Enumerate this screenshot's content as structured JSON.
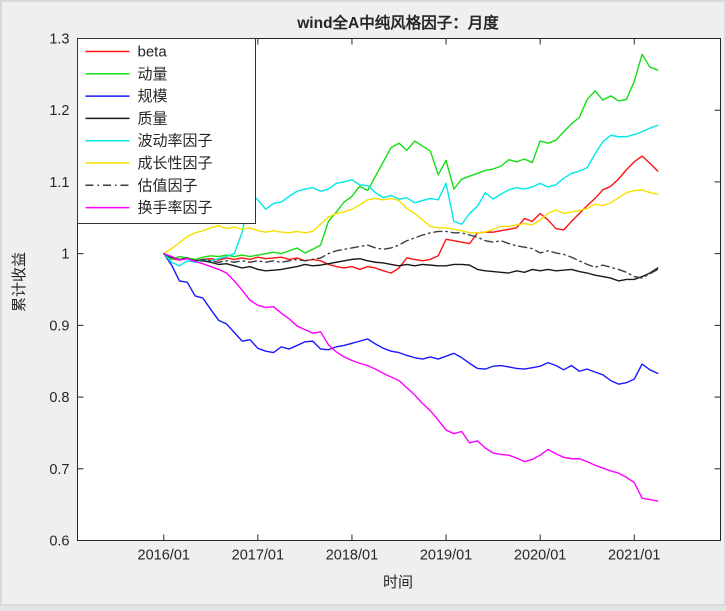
{
  "figure": {
    "background": "#efefef",
    "plot_background": "#ffffff",
    "axis_color": "#262626",
    "frame_color": "#d9d9d9"
  },
  "chart_data": {
    "type": "line",
    "title": "wind全A中纯风格因子：月度",
    "xlabel": "时间",
    "ylabel": "累计收益",
    "grid": false,
    "legend_position": "top-left-inside",
    "x_description": "monthly points, month index 0 = 2016/01, last point = 2021/04",
    "xlim_months": [
      -11,
      71
    ],
    "ylim": [
      0.6,
      1.3
    ],
    "xticks_months": [
      0,
      12,
      24,
      36,
      48,
      60
    ],
    "xtick_labels": [
      "2016/01",
      "2017/01",
      "2018/01",
      "2019/01",
      "2020/01",
      "2021/01"
    ],
    "yticks": [
      0.6,
      0.7,
      0.8,
      0.9,
      1.0,
      1.1,
      1.2,
      1.3
    ],
    "ytick_labels": [
      "0.6",
      "0.7",
      "0.8",
      "0.9",
      "1",
      "1.1",
      "1.2",
      "1.3"
    ],
    "series": [
      {
        "name": "beta",
        "color": "#ff1111",
        "style": "solid",
        "values": [
          1.0,
          0.993,
          0.991,
          0.994,
          0.99,
          0.992,
          0.993,
          0.991,
          0.994,
          0.992,
          0.994,
          0.992,
          0.995,
          0.993,
          0.994,
          0.995,
          0.992,
          0.994,
          0.99,
          0.992,
          0.99,
          0.985,
          0.982,
          0.98,
          0.982,
          0.978,
          0.982,
          0.98,
          0.976,
          0.973,
          0.98,
          0.994,
          0.992,
          0.99,
          0.992,
          0.997,
          1.02,
          1.018,
          1.016,
          1.014,
          1.029,
          1.03,
          1.03,
          1.032,
          1.034,
          1.036,
          1.049,
          1.045,
          1.056,
          1.047,
          1.035,
          1.033,
          1.045,
          1.056,
          1.067,
          1.077,
          1.089,
          1.094,
          1.104,
          1.117,
          1.128,
          1.136,
          1.126,
          1.115
        ]
      },
      {
        "name": "动量",
        "color": "#15dd15",
        "style": "solid",
        "values": [
          1.0,
          0.992,
          0.996,
          0.994,
          0.992,
          0.995,
          0.997,
          0.996,
          0.998,
          0.996,
          0.998,
          0.996,
          0.998,
          1.0,
          1.002,
          1.0,
          1.004,
          1.008,
          1.001,
          1.006,
          1.012,
          1.045,
          1.058,
          1.072,
          1.08,
          1.094,
          1.088,
          1.108,
          1.128,
          1.148,
          1.154,
          1.144,
          1.157,
          1.15,
          1.143,
          1.11,
          1.13,
          1.09,
          1.104,
          1.108,
          1.112,
          1.116,
          1.118,
          1.122,
          1.131,
          1.128,
          1.132,
          1.127,
          1.157,
          1.154,
          1.158,
          1.17,
          1.181,
          1.19,
          1.215,
          1.227,
          1.214,
          1.22,
          1.213,
          1.215,
          1.24,
          1.278,
          1.26,
          1.256
        ]
      },
      {
        "name": "规模",
        "color": "#1a1aff",
        "style": "solid",
        "values": [
          1.0,
          0.984,
          0.962,
          0.96,
          0.941,
          0.938,
          0.922,
          0.907,
          0.902,
          0.89,
          0.878,
          0.88,
          0.868,
          0.864,
          0.862,
          0.87,
          0.867,
          0.872,
          0.877,
          0.878,
          0.867,
          0.866,
          0.87,
          0.872,
          0.875,
          0.878,
          0.881,
          0.874,
          0.868,
          0.864,
          0.862,
          0.858,
          0.855,
          0.853,
          0.856,
          0.853,
          0.857,
          0.861,
          0.855,
          0.847,
          0.84,
          0.839,
          0.843,
          0.844,
          0.842,
          0.84,
          0.839,
          0.841,
          0.843,
          0.848,
          0.844,
          0.838,
          0.844,
          0.836,
          0.839,
          0.835,
          0.831,
          0.823,
          0.818,
          0.82,
          0.825,
          0.846,
          0.838,
          0.833
        ]
      },
      {
        "name": "质量",
        "color": "#1a1a1a",
        "style": "solid",
        "values": [
          1.0,
          0.995,
          0.992,
          0.993,
          0.99,
          0.99,
          0.988,
          0.985,
          0.986,
          0.983,
          0.98,
          0.982,
          0.978,
          0.976,
          0.977,
          0.978,
          0.98,
          0.982,
          0.985,
          0.983,
          0.984,
          0.986,
          0.988,
          0.99,
          0.992,
          0.993,
          0.99,
          0.988,
          0.987,
          0.985,
          0.983,
          0.985,
          0.983,
          0.985,
          0.984,
          0.983,
          0.983,
          0.985,
          0.985,
          0.984,
          0.978,
          0.976,
          0.975,
          0.974,
          0.973,
          0.976,
          0.974,
          0.978,
          0.976,
          0.978,
          0.976,
          0.977,
          0.978,
          0.975,
          0.973,
          0.97,
          0.968,
          0.966,
          0.962,
          0.964,
          0.964,
          0.968,
          0.973,
          0.98
        ]
      },
      {
        "name": "波动率因子",
        "color": "#00e8e8",
        "style": "solid",
        "values": [
          1.0,
          0.988,
          0.983,
          0.99,
          0.988,
          0.992,
          0.99,
          0.993,
          0.996,
          1.0,
          1.03,
          1.084,
          1.075,
          1.062,
          1.07,
          1.072,
          1.08,
          1.087,
          1.09,
          1.092,
          1.087,
          1.09,
          1.098,
          1.1,
          1.103,
          1.096,
          1.095,
          1.085,
          1.078,
          1.081,
          1.076,
          1.078,
          1.071,
          1.074,
          1.077,
          1.075,
          1.098,
          1.045,
          1.041,
          1.056,
          1.066,
          1.085,
          1.076,
          1.083,
          1.089,
          1.092,
          1.09,
          1.093,
          1.098,
          1.093,
          1.096,
          1.105,
          1.112,
          1.115,
          1.12,
          1.139,
          1.156,
          1.165,
          1.163,
          1.163,
          1.166,
          1.17,
          1.175,
          1.179
        ]
      },
      {
        "name": "成长性因子",
        "color": "#f5e000",
        "style": "solid",
        "values": [
          1.0,
          1.007,
          1.015,
          1.024,
          1.029,
          1.032,
          1.036,
          1.039,
          1.035,
          1.037,
          1.034,
          1.036,
          1.032,
          1.03,
          1.032,
          1.03,
          1.029,
          1.031,
          1.029,
          1.031,
          1.041,
          1.051,
          1.056,
          1.058,
          1.062,
          1.068,
          1.075,
          1.077,
          1.075,
          1.077,
          1.074,
          1.063,
          1.056,
          1.047,
          1.038,
          1.036,
          1.036,
          1.034,
          1.032,
          1.029,
          1.029,
          1.03,
          1.034,
          1.038,
          1.038,
          1.04,
          1.042,
          1.04,
          1.047,
          1.056,
          1.061,
          1.056,
          1.058,
          1.06,
          1.063,
          1.069,
          1.067,
          1.071,
          1.078,
          1.085,
          1.088,
          1.089,
          1.085,
          1.083
        ]
      },
      {
        "name": "估值因子",
        "color": "#3d3d3d",
        "style": "dash-dot",
        "values": [
          1.0,
          0.994,
          0.992,
          0.994,
          0.99,
          0.992,
          0.99,
          0.988,
          0.99,
          0.988,
          0.99,
          0.988,
          0.99,
          0.988,
          0.99,
          0.988,
          0.99,
          0.992,
          0.99,
          0.992,
          0.994,
          1.0,
          1.004,
          1.006,
          1.008,
          1.01,
          1.012,
          1.008,
          1.006,
          1.008,
          1.012,
          1.018,
          1.022,
          1.026,
          1.029,
          1.031,
          1.031,
          1.029,
          1.029,
          1.026,
          1.023,
          1.018,
          1.016,
          1.018,
          1.014,
          1.011,
          1.009,
          1.007,
          1.001,
          1.004,
          1.001,
          0.999,
          0.995,
          0.99,
          0.985,
          0.981,
          0.984,
          0.981,
          0.978,
          0.974,
          0.968,
          0.966,
          0.972,
          0.978
        ]
      },
      {
        "name": "换手率因子",
        "color": "#ff00ff",
        "style": "solid",
        "values": [
          1.0,
          0.996,
          0.991,
          0.993,
          0.989,
          0.986,
          0.982,
          0.978,
          0.973,
          0.962,
          0.949,
          0.935,
          0.928,
          0.925,
          0.926,
          0.917,
          0.909,
          0.899,
          0.894,
          0.889,
          0.891,
          0.873,
          0.863,
          0.856,
          0.851,
          0.847,
          0.844,
          0.839,
          0.833,
          0.828,
          0.823,
          0.813,
          0.803,
          0.791,
          0.781,
          0.768,
          0.754,
          0.749,
          0.752,
          0.736,
          0.739,
          0.729,
          0.722,
          0.72,
          0.719,
          0.715,
          0.71,
          0.713,
          0.719,
          0.727,
          0.721,
          0.716,
          0.714,
          0.714,
          0.71,
          0.705,
          0.701,
          0.697,
          0.694,
          0.688,
          0.681,
          0.659,
          0.657,
          0.655
        ]
      }
    ]
  }
}
